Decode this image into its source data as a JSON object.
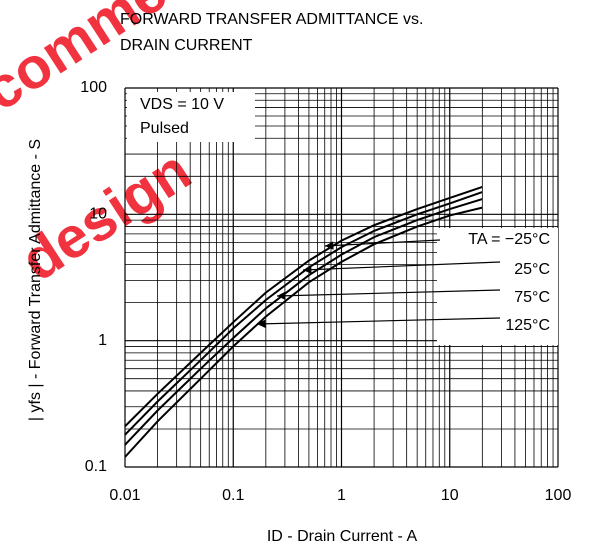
{
  "chart_data": {
    "type": "line",
    "title": "FORWARD TRANSFER ADMITTANCE vs. DRAIN CURRENT",
    "x_label": "ID - Drain Current - A",
    "y_label": "| yfs | - Forward Transfer Admittance - S",
    "watermark": [
      "Recommended",
      "design"
    ],
    "annotations": [
      "VDS = 10 V",
      "Pulsed"
    ],
    "x": [
      0.01,
      0.02,
      0.05,
      0.1,
      0.2,
      0.5,
      1,
      2,
      5,
      10,
      20
    ],
    "series": [
      {
        "name": "TA = −25°C",
        "color": "#000000",
        "values": [
          0.21,
          0.38,
          0.8,
          1.4,
          2.4,
          4.3,
          6.2,
          8.2,
          11,
          13.5,
          16.5
        ]
      },
      {
        "name": "25°C",
        "color": "#000000",
        "values": [
          0.18,
          0.33,
          0.7,
          1.25,
          2.1,
          3.8,
          5.5,
          7.4,
          10,
          12.2,
          15
        ]
      },
      {
        "name": "75°C",
        "color": "#000000",
        "values": [
          0.15,
          0.28,
          0.6,
          1.05,
          1.8,
          3.3,
          4.8,
          6.6,
          9,
          11,
          13.2
        ]
      },
      {
        "name": "125°C",
        "color": "#000000",
        "values": [
          0.12,
          0.23,
          0.5,
          0.9,
          1.55,
          2.9,
          4.2,
          5.8,
          8,
          9.8,
          11.3
        ]
      }
    ],
    "xlim": [
      0.01,
      100
    ],
    "ylim": [
      0.1,
      100
    ],
    "xticks": [
      0.01,
      0.1,
      1,
      10,
      100
    ],
    "yticks": [
      0.1,
      1,
      10,
      100
    ],
    "log_x": true,
    "log_y": true,
    "grid": true
  }
}
